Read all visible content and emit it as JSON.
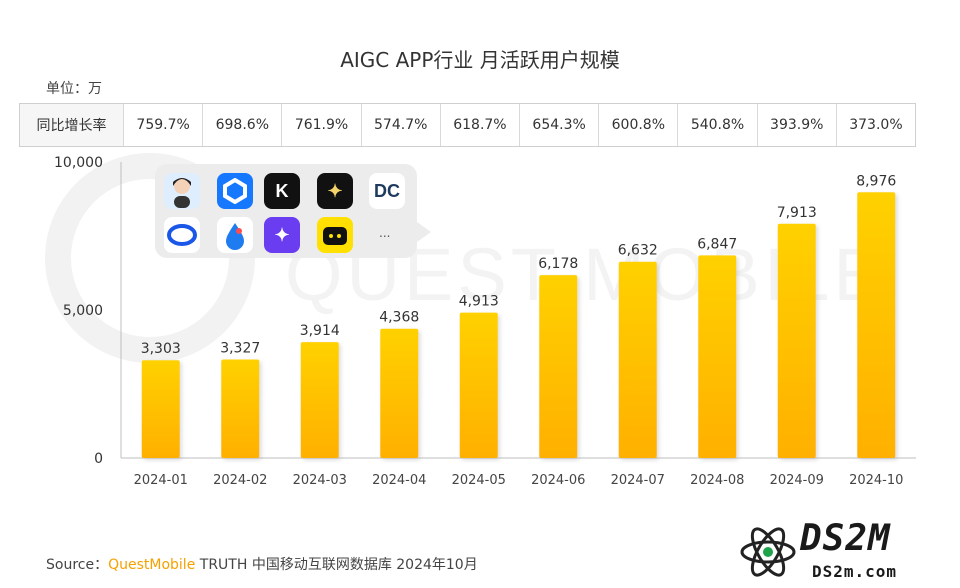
{
  "chart_data": {
    "type": "bar",
    "title": "AIGC APP行业 月活跃用户规模",
    "unit_label": "单位：万",
    "categories": [
      "2024-01",
      "2024-02",
      "2024-03",
      "2024-04",
      "2024-05",
      "2024-06",
      "2024-07",
      "2024-08",
      "2024-09",
      "2024-10"
    ],
    "values": [
      3303,
      3327,
      3914,
      4368,
      4913,
      6178,
      6632,
      6847,
      7913,
      8976
    ],
    "value_labels": [
      "3,303",
      "3,327",
      "3,914",
      "4,368",
      "4,913",
      "6,178",
      "6,632",
      "6,847",
      "7,913",
      "8,976"
    ],
    "ylim": [
      0,
      10000
    ],
    "yticks": [
      0,
      5000,
      10000
    ],
    "ytick_labels": [
      "0",
      "5,000",
      "10,000"
    ],
    "grid": false,
    "bar_color_top": "#ffd100",
    "bar_color_bottom": "#ffb000",
    "growth_row": {
      "label": "同比增长率",
      "values": [
        "759.7%",
        "698.6%",
        "761.9%",
        "574.7%",
        "618.7%",
        "654.3%",
        "600.8%",
        "540.8%",
        "393.9%",
        "373.0%"
      ]
    }
  },
  "icons": [
    {
      "name": "avatar-girl-icon",
      "bg": "#dfeefe"
    },
    {
      "name": "hexagon-app-icon",
      "bg": "#1677ff"
    },
    {
      "name": "k-letter-app-icon",
      "bg": "#111111",
      "glyph": "K"
    },
    {
      "name": "sparkle-app-icon",
      "bg": "#111111",
      "glyph": "✦"
    },
    {
      "name": "dc-logo-app-icon",
      "bg": "#ffffff",
      "glyph": "DC"
    },
    {
      "name": "ring-app-icon",
      "bg": "#ffffff"
    },
    {
      "name": "drop-app-icon",
      "bg": "#ffffff"
    },
    {
      "name": "star-app-icon",
      "bg": "#6a3df0",
      "glyph": "✦"
    },
    {
      "name": "cat-app-icon",
      "bg": "#ffe000"
    }
  ],
  "icons_more": "...",
  "source": {
    "prefix": "Source：",
    "brand": "QuestMobile",
    "rest": " TRUTH 中国移动互联网数据库 2024年10月"
  },
  "watermark": "DS2M",
  "watermark_sub": "DS2m.com"
}
